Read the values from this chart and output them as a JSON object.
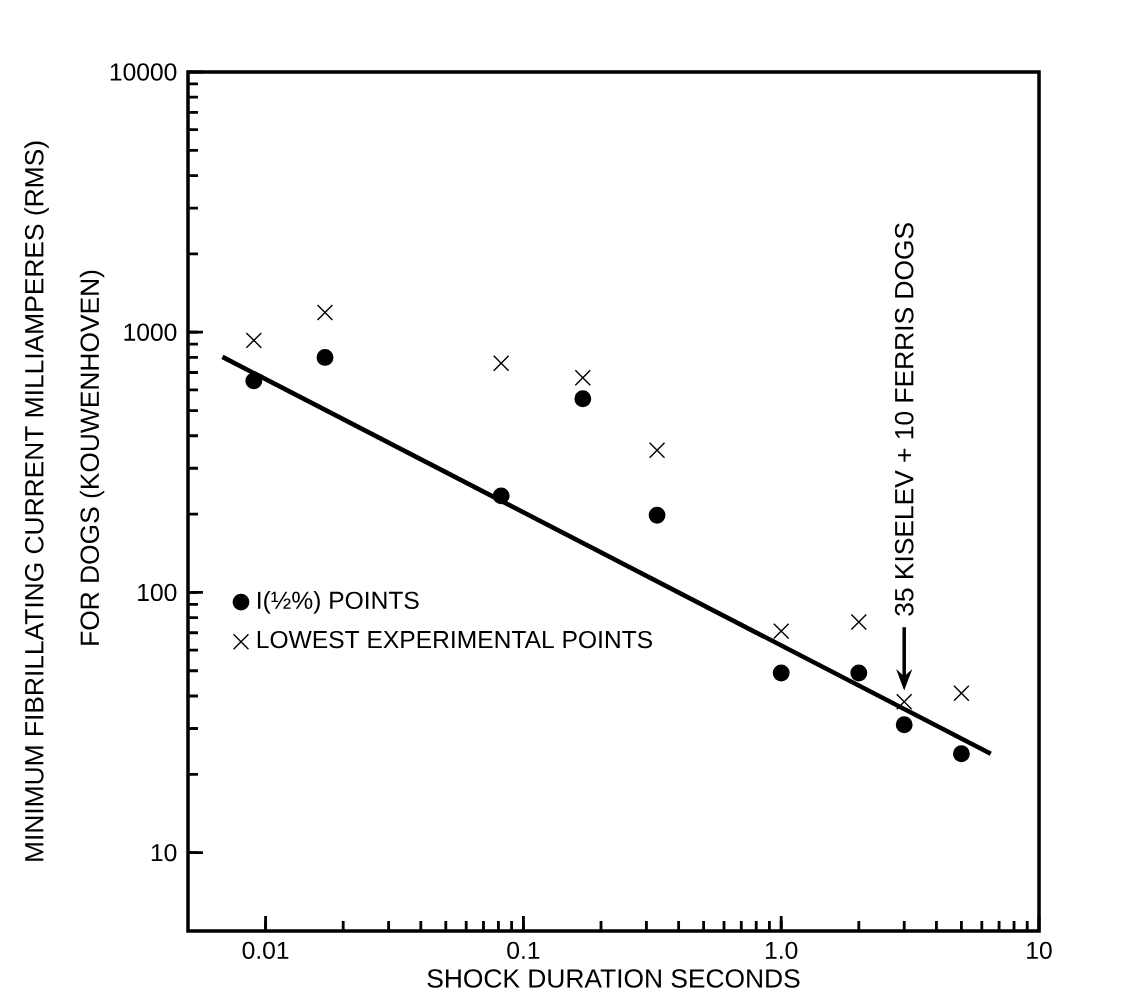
{
  "chart_data": {
    "type": "scatter",
    "xlabel": "SHOCK   DURATION   SECONDS",
    "ylabel": "MINIMUM   FIBRILLATING   CURRENT   MILLIAMPERES   (RMS)",
    "series": [
      {
        "name": "I(½%) POINTS",
        "marker": "circle",
        "color": "#000000",
        "x": [
          0.009,
          0.017,
          0.082,
          0.17,
          0.33,
          1.0,
          2.0,
          3.0,
          5.0
        ],
        "values": [
          650,
          800,
          235,
          555,
          198,
          49,
          49,
          31,
          24
        ]
      },
      {
        "name": "LOWEST EXPERIMENTAL POINTS",
        "marker": "cross",
        "color": "#000000",
        "x": [
          0.009,
          0.017,
          0.082,
          0.17,
          0.33,
          1.0,
          2.0,
          3.0,
          5.0
        ],
        "values": [
          930,
          1190,
          760,
          668,
          352,
          71,
          77,
          38,
          41
        ]
      },
      {
        "type": "line",
        "marker": "none",
        "color": "#000000",
        "x": [
          0.0068,
          6.5
        ],
        "values": [
          804,
          24
        ]
      }
    ],
    "log": "xy",
    "xlim": [
      0.005,
      10
    ],
    "ylim": [
      5,
      10000
    ],
    "xticks": [
      0.01,
      0.1,
      {
        "value": 1,
        "label": "1.0"
      },
      10
    ],
    "yticks": [
      10,
      100,
      1000,
      10000
    ],
    "grid": false,
    "legend": "left",
    "annotations": [
      "FOR DOGS (KOUWENHOVEN)",
      {
        "text": "35 KISELEV + 10 FERRIS DOGS",
        "x": 3,
        "y": 42
      }
    ]
  }
}
